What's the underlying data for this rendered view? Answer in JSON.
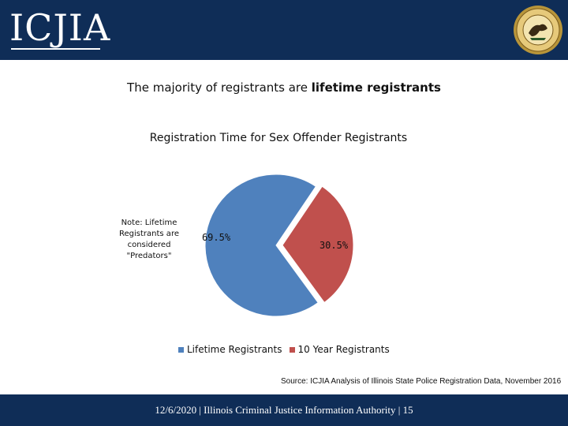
{
  "header": {
    "logo_text": "ICJIA",
    "seal_icon": "illinois-state-seal-icon",
    "background_color": "#0f2d57"
  },
  "headline": {
    "prefix": "The majority of registrants are ",
    "emphasis": "lifetime registrants"
  },
  "note": "Note: Lifetime Registrants are considered \"Predators\"",
  "chart_data": {
    "type": "pie",
    "title": "Registration Time for Sex Offender Registrants",
    "categories": [
      "Lifetime Registrants",
      "10 Year Registrants"
    ],
    "values": [
      69.5,
      30.5
    ],
    "value_labels": [
      "69.5%",
      "30.5%"
    ],
    "colors": [
      "#4f81bd",
      "#c0504d"
    ],
    "exploded_slice": "10 Year Registrants",
    "legend_position": "bottom"
  },
  "source": "Source: ICJIA Analysis of Illinois State Police Registration Data, November 2016",
  "footer": {
    "text": "12/6/2020 | Illinois Criminal Justice Information Authority | 15"
  }
}
